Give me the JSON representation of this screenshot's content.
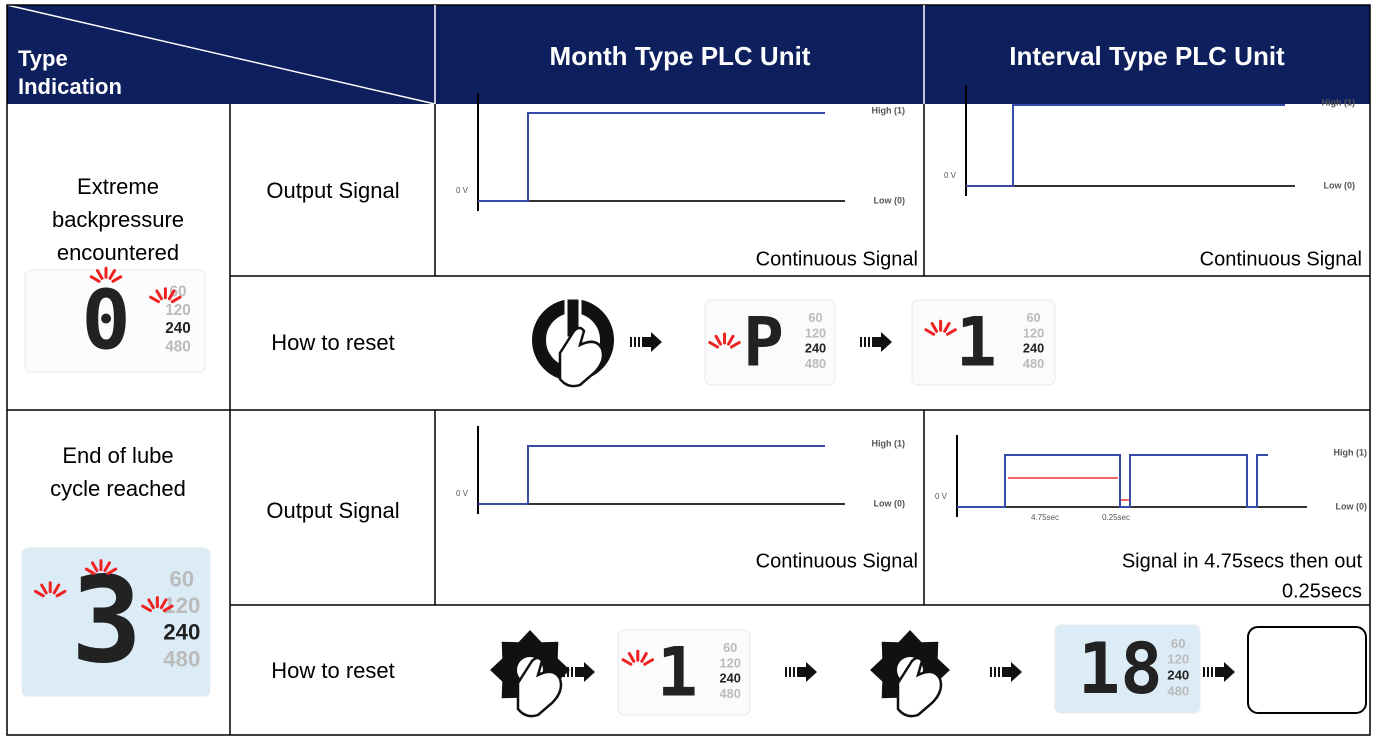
{
  "header": {
    "type_label": "Type",
    "indication_label": "Indication",
    "columns": [
      "Month Type PLC Unit",
      "Interval Type PLC Unit"
    ]
  },
  "rows": [
    {
      "condition": [
        "Extreme",
        "backpressure",
        "encountered"
      ],
      "output_label": "Output Signal",
      "reset_label": "How to reset",
      "month_caption": [
        "Continuous Signal"
      ],
      "interval_caption": [
        "Continuous Signal"
      ]
    },
    {
      "condition": [
        "End of lube",
        "cycle reached"
      ],
      "output_label": "Output Signal",
      "reset_label": "How to reset",
      "month_caption": [
        "Continuous Signal"
      ],
      "interval_caption": [
        "Signal in 4.75secs then out",
        "0.25secs"
      ]
    }
  ],
  "signal_labels": {
    "high": "High (1)",
    "low": "Low (0)",
    "zero": "0 V"
  },
  "interval_timing": [
    "4.75sec",
    "0.25sec"
  ],
  "lcd_scale": [
    "60",
    "120",
    "240",
    "480"
  ],
  "lcd_digits": [
    "0",
    "3",
    "P",
    "1",
    "18"
  ]
}
